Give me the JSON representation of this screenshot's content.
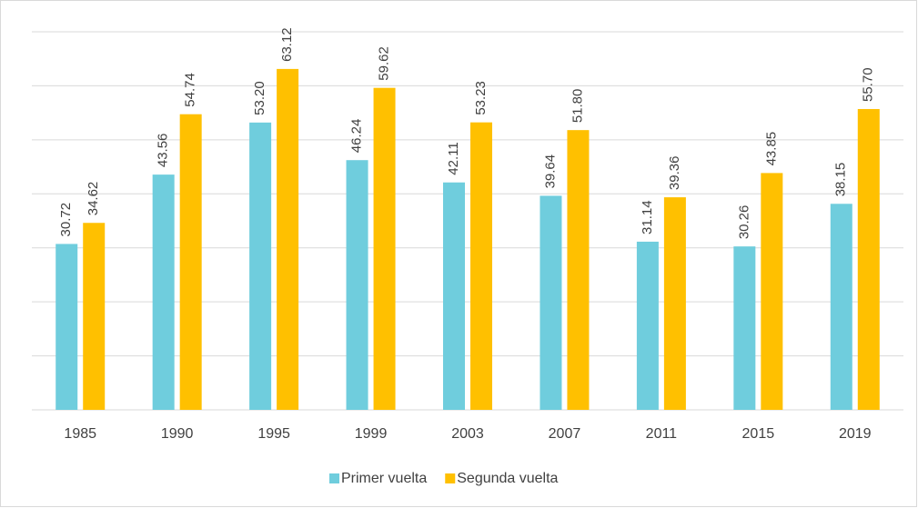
{
  "chart_data": {
    "type": "bar",
    "categories": [
      "1985",
      "1990",
      "1995",
      "1999",
      "2003",
      "2007",
      "2011",
      "2015",
      "2019"
    ],
    "series": [
      {
        "name": "Primer vuelta",
        "color": "#6fcddd",
        "values": [
          30.72,
          43.56,
          53.2,
          46.24,
          42.11,
          39.64,
          31.14,
          30.26,
          38.15
        ],
        "value_labels": [
          "30.72",
          "43.56",
          "53.20",
          "46.24",
          "42.11",
          "39.64",
          "31.14",
          "30.26",
          "38.15"
        ]
      },
      {
        "name": "Segunda vuelta",
        "color": "#ffc000",
        "values": [
          34.62,
          54.74,
          63.12,
          59.62,
          53.23,
          51.8,
          39.36,
          43.85,
          55.7
        ],
        "value_labels": [
          "34.62",
          "54.74",
          "63.12",
          "59.62",
          "53.23",
          "51.80",
          "39.36",
          "43.85",
          "55.70"
        ]
      }
    ],
    "ylim": [
      0,
      70
    ],
    "yticks": [
      0,
      10,
      20,
      30,
      40,
      50,
      60,
      70
    ],
    "grid": true
  }
}
